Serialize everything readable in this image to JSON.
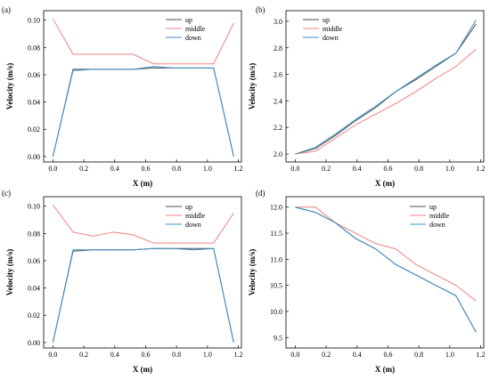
{
  "chart_data": [
    {
      "type": "line",
      "panel_label": "(a)",
      "xlabel": "X (m)",
      "ylabel": "Velocity (m/s)",
      "xlim": [
        -0.06,
        1.22
      ],
      "ylim": [
        -0.004,
        0.107
      ],
      "xticks": [
        "0.0",
        "0.2",
        "0.4",
        "0.6",
        "0.8",
        "1.0",
        "1.2"
      ],
      "xtick_values": [
        0.0,
        0.2,
        0.4,
        0.6,
        0.8,
        1.0,
        1.2
      ],
      "yticks": [
        "0.00",
        "0.02",
        "0.04",
        "0.06",
        "0.08",
        "0.10"
      ],
      "ytick_values": [
        0.0,
        0.02,
        0.04,
        0.06,
        0.08,
        0.1
      ],
      "legend_position": "top-right",
      "series": [
        {
          "name": "up",
          "color": "#4d4d4d",
          "x": [
            0.0,
            0.13,
            0.26,
            0.39,
            0.52,
            0.65,
            0.78,
            0.91,
            1.04,
            1.17
          ],
          "y": [
            0.0,
            0.064,
            0.064,
            0.064,
            0.064,
            0.065,
            0.065,
            0.065,
            0.065,
            0.0
          ]
        },
        {
          "name": "middle",
          "color": "#f08080",
          "x": [
            0.0,
            0.13,
            0.26,
            0.39,
            0.52,
            0.65,
            0.78,
            0.91,
            1.04,
            1.17
          ],
          "y": [
            0.101,
            0.075,
            0.075,
            0.075,
            0.075,
            0.068,
            0.068,
            0.068,
            0.068,
            0.098
          ]
        },
        {
          "name": "down",
          "color": "#3b8fc4",
          "x": [
            0.0,
            0.13,
            0.26,
            0.39,
            0.52,
            0.65,
            0.78,
            0.91,
            1.04,
            1.17
          ],
          "y": [
            0.0,
            0.063,
            0.064,
            0.064,
            0.064,
            0.066,
            0.065,
            0.065,
            0.065,
            0.0
          ]
        }
      ]
    },
    {
      "type": "line",
      "panel_label": "(b)",
      "xlabel": "X (m)",
      "ylabel": "Velocity (m/s)",
      "xlim": [
        -0.06,
        1.22
      ],
      "ylim": [
        1.94,
        3.08
      ],
      "xticks": [
        "0.0",
        "0.2",
        "0.4",
        "0.6",
        "0.8",
        "1.0",
        "1.2"
      ],
      "xtick_values": [
        0.0,
        0.2,
        0.4,
        0.6,
        0.8,
        1.0,
        1.2
      ],
      "yticks": [
        "2.0",
        "2.2",
        "2.4",
        "2.6",
        "2.8",
        "3.0"
      ],
      "ytick_values": [
        2.0,
        2.2,
        2.4,
        2.6,
        2.8,
        3.0
      ],
      "legend_position": "top-center",
      "series": [
        {
          "name": "up",
          "color": "#4d4d4d",
          "x": [
            0.0,
            0.13,
            0.26,
            0.39,
            0.52,
            0.65,
            0.78,
            0.91,
            1.04,
            1.17
          ],
          "y": [
            2.0,
            2.04,
            2.14,
            2.25,
            2.35,
            2.47,
            2.56,
            2.66,
            2.76,
            2.98
          ]
        },
        {
          "name": "middle",
          "color": "#f08080",
          "x": [
            0.0,
            0.13,
            0.26,
            0.39,
            0.52,
            0.65,
            0.78,
            0.91,
            1.04,
            1.17
          ],
          "y": [
            2.0,
            2.02,
            2.12,
            2.22,
            2.3,
            2.38,
            2.47,
            2.57,
            2.66,
            2.79
          ]
        },
        {
          "name": "down",
          "color": "#3b8fc4",
          "x": [
            0.0,
            0.13,
            0.26,
            0.39,
            0.52,
            0.65,
            0.78,
            0.91,
            1.04,
            1.17
          ],
          "y": [
            2.0,
            2.05,
            2.15,
            2.26,
            2.36,
            2.47,
            2.57,
            2.67,
            2.76,
            3.01
          ]
        }
      ]
    },
    {
      "type": "line",
      "panel_label": "(c)",
      "xlabel": "X (m)",
      "ylabel": "Velocity (m/s)",
      "xlim": [
        -0.06,
        1.22
      ],
      "ylim": [
        -0.004,
        0.107
      ],
      "xticks": [
        "0.0",
        "0.2",
        "0.4",
        "0.6",
        "0.8",
        "1.0",
        "1.2"
      ],
      "xtick_values": [
        0.0,
        0.2,
        0.4,
        0.6,
        0.8,
        1.0,
        1.2
      ],
      "yticks": [
        "0.00",
        "0.02",
        "0.04",
        "0.06",
        "0.08",
        "0.10"
      ],
      "ytick_values": [
        0.0,
        0.02,
        0.04,
        0.06,
        0.08,
        0.1
      ],
      "legend_position": "top-right",
      "series": [
        {
          "name": "up",
          "color": "#4d4d4d",
          "x": [
            0.0,
            0.13,
            0.26,
            0.39,
            0.52,
            0.65,
            0.78,
            0.91,
            1.04,
            1.17
          ],
          "y": [
            0.0,
            0.067,
            0.068,
            0.068,
            0.068,
            0.069,
            0.069,
            0.069,
            0.069,
            0.0
          ]
        },
        {
          "name": "middle",
          "color": "#f08080",
          "x": [
            0.0,
            0.13,
            0.26,
            0.39,
            0.52,
            0.65,
            0.78,
            0.91,
            1.04,
            1.17
          ],
          "y": [
            0.101,
            0.081,
            0.078,
            0.081,
            0.079,
            0.073,
            0.073,
            0.073,
            0.073,
            0.095
          ]
        },
        {
          "name": "down",
          "color": "#3b8fc4",
          "x": [
            0.0,
            0.13,
            0.26,
            0.39,
            0.52,
            0.65,
            0.78,
            0.91,
            1.04,
            1.17
          ],
          "y": [
            0.0,
            0.068,
            0.068,
            0.068,
            0.068,
            0.069,
            0.069,
            0.068,
            0.069,
            0.0
          ]
        }
      ]
    },
    {
      "type": "line",
      "panel_label": "(d)",
      "xlabel": "X (m)",
      "ylabel": "Velocity (m/s)",
      "xlim": [
        -0.06,
        1.22
      ],
      "ylim": [
        9.3,
        12.2
      ],
      "xticks": [
        "0.0",
        "0.2",
        "0.4",
        "0.6",
        "0.8",
        "1.0",
        "1.2"
      ],
      "xtick_values": [
        0.0,
        0.2,
        0.4,
        0.6,
        0.8,
        1.0,
        1.2
      ],
      "yticks": [
        "9.5",
        "10.0",
        "10.5",
        "11.0",
        "11.5",
        "12.0"
      ],
      "ytick_values": [
        9.5,
        10.0,
        10.5,
        11.0,
        11.5,
        12.0
      ],
      "legend_position": "top-right",
      "series": [
        {
          "name": "up",
          "color": "#4d4d4d",
          "x": [
            0.0,
            0.13,
            0.26,
            0.39,
            0.52,
            0.65,
            0.78,
            0.91,
            1.04,
            1.17
          ],
          "y": [
            12.0,
            11.9,
            11.7,
            11.4,
            11.2,
            10.9,
            10.7,
            10.5,
            10.3,
            9.6
          ]
        },
        {
          "name": "middle",
          "color": "#f08080",
          "x": [
            0.0,
            0.13,
            0.26,
            0.39,
            0.52,
            0.65,
            0.78,
            0.91,
            1.04,
            1.17
          ],
          "y": [
            12.0,
            12.0,
            11.7,
            11.5,
            11.3,
            11.2,
            10.9,
            10.7,
            10.5,
            10.2
          ]
        },
        {
          "name": "down",
          "color": "#3b8fc4",
          "x": [
            0.0,
            0.13,
            0.26,
            0.39,
            0.52,
            0.65,
            0.78,
            0.91,
            1.04,
            1.17
          ],
          "y": [
            12.0,
            11.9,
            11.7,
            11.4,
            11.2,
            10.9,
            10.7,
            10.5,
            10.3,
            9.6
          ]
        }
      ]
    }
  ]
}
